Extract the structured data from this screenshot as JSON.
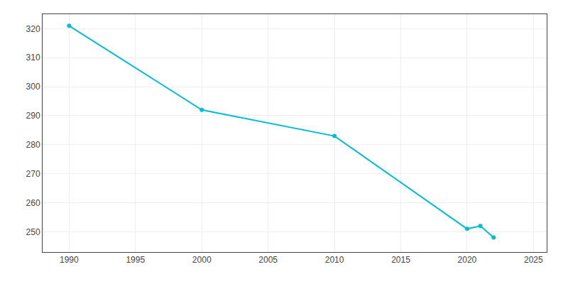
{
  "chart_data": {
    "type": "line",
    "x": [
      1990,
      2000,
      2010,
      2020,
      2021,
      2022
    ],
    "values": [
      321,
      292,
      283,
      251,
      252,
      248
    ],
    "color": "#00bcd4",
    "marker": "circle",
    "xlim": [
      1988,
      2026
    ],
    "ylim": [
      243,
      325
    ],
    "xticks": [
      1990,
      1995,
      2000,
      2005,
      2010,
      2015,
      2020,
      2025
    ],
    "yticks": [
      250,
      260,
      270,
      280,
      290,
      300,
      310,
      320
    ],
    "grid": true
  }
}
